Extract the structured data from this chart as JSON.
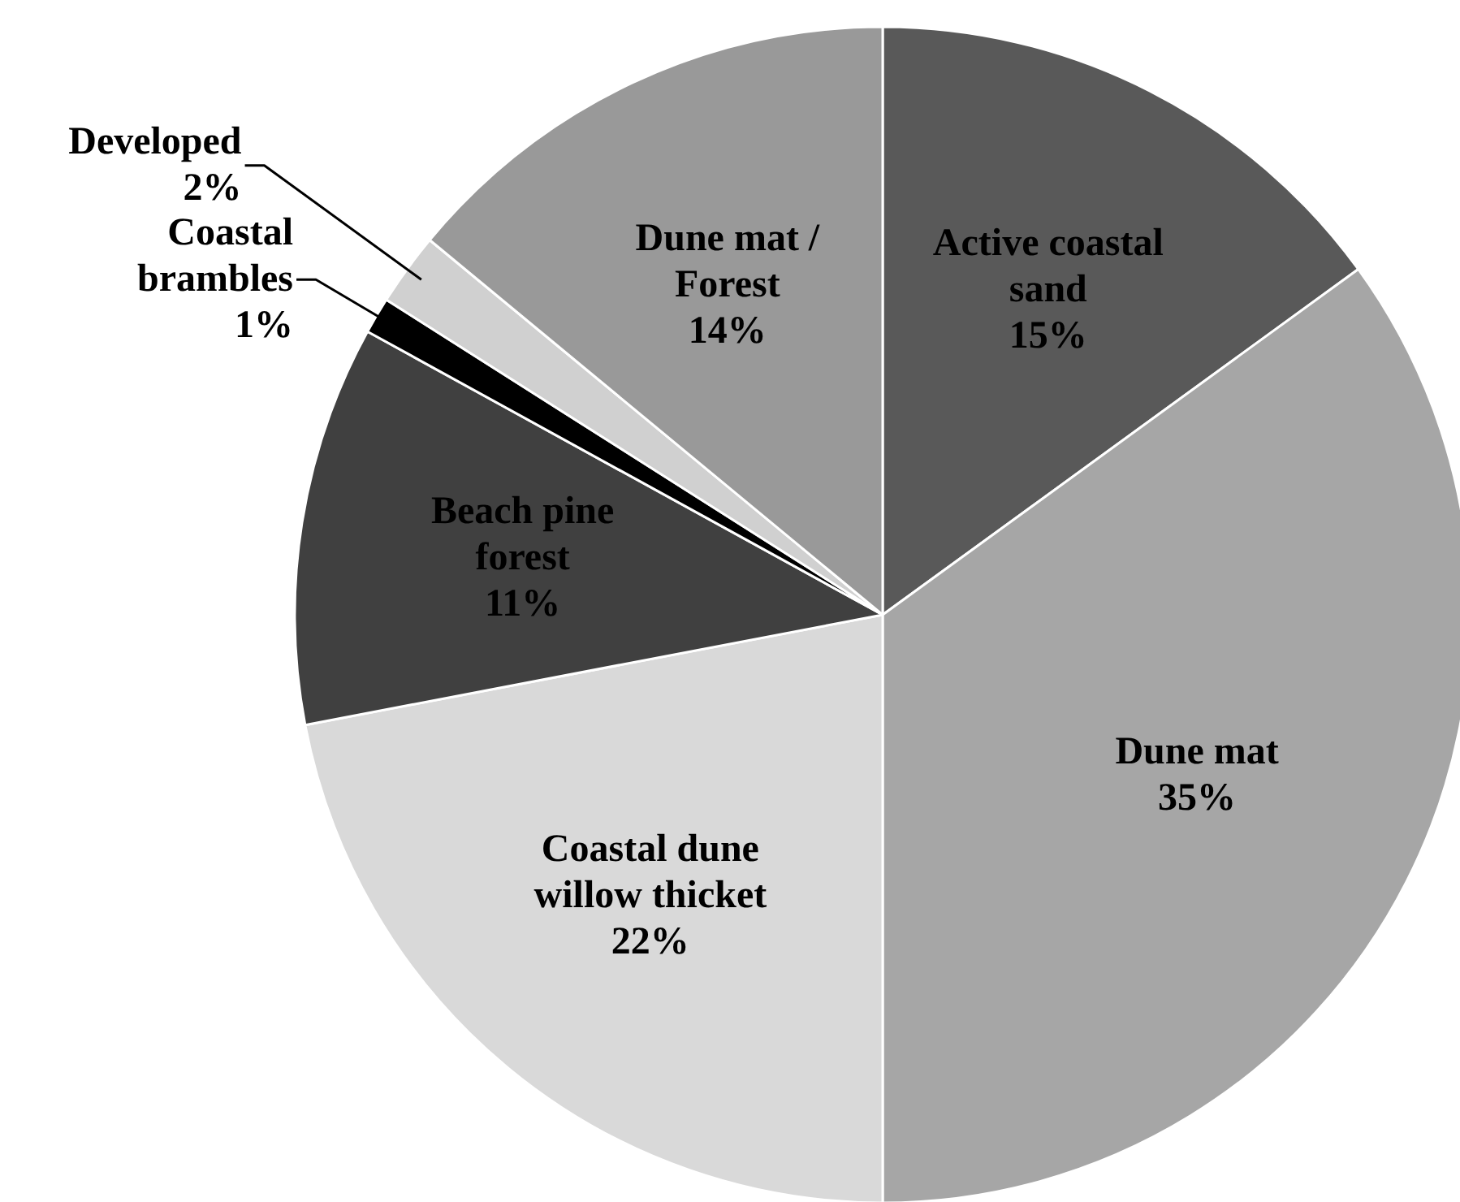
{
  "chart_data": {
    "type": "pie",
    "categories": [
      "Active coastal sand",
      "Dune mat",
      "Coastal dune willow thicket",
      "Beach pine forest",
      "Coastal brambles",
      "Developed",
      "Dune mat / Forest"
    ],
    "values": [
      15,
      35,
      22,
      11,
      1,
      2,
      14
    ],
    "colors": [
      "#595959",
      "#a6a6a6",
      "#d9d9d9",
      "#404040",
      "#000000",
      "#d0d0d0",
      "#999999"
    ],
    "value_labels": [
      "15%",
      "35%",
      "22%",
      "11%",
      "1%",
      "2%",
      "14%"
    ]
  }
}
